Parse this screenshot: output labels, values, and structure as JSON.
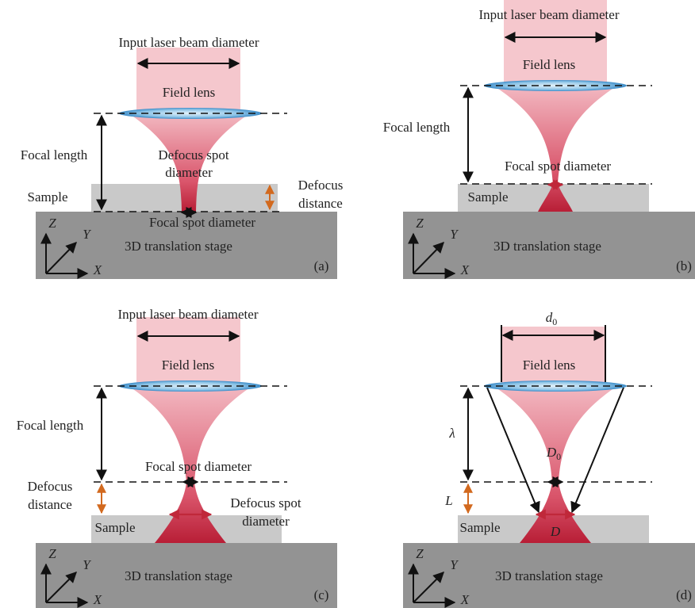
{
  "panels": [
    {
      "input_label": "Input laser beam diameter",
      "lens_label": "Field lens",
      "focal_length_label": "Focal length",
      "defocus_spot_label": [
        "Defocus spot",
        "diameter"
      ],
      "sample_label": "Sample",
      "defocus_distance_label": [
        "Defocus",
        "distance"
      ],
      "focal_spot_label": "Focal spot diameter",
      "stage_label": "3D translation stage",
      "axes": {
        "z": "Z",
        "y": "Y",
        "x": "X"
      },
      "tag": "(a)"
    },
    {
      "input_label": "Input laser beam diameter",
      "lens_label": "Field lens",
      "focal_length_label": "Focal length",
      "focal_spot_label": "Focal spot diameter",
      "sample_label": "Sample",
      "stage_label": "3D translation stage",
      "axes": {
        "z": "Z",
        "y": "Y",
        "x": "X"
      },
      "tag": "(b)"
    },
    {
      "input_label": "Input laser beam diameter",
      "lens_label": "Field lens",
      "focal_length_label": "Focal length",
      "focal_spot_label": "Focal spot diameter",
      "defocus_distance_label": [
        "Defocus",
        "distance"
      ],
      "defocus_spot_label": [
        "Defocus spot",
        "diameter"
      ],
      "sample_label": "Sample",
      "stage_label": "3D translation stage",
      "axes": {
        "z": "Z",
        "y": "Y",
        "x": "X"
      },
      "tag": "(c)"
    },
    {
      "beam_diameter": {
        "symbol": "d",
        "sub": "0"
      },
      "lens_label": "Field lens",
      "focal_length_symbol": "λ",
      "focal_spot": {
        "symbol": "D",
        "sub": "0"
      },
      "defocus_symbol": "L",
      "sample_label": "Sample",
      "spot_symbol": "D",
      "stage_label": "3D translation stage",
      "axes": {
        "z": "Z",
        "y": "Y",
        "x": "X"
      },
      "tag": "(d)"
    }
  ]
}
